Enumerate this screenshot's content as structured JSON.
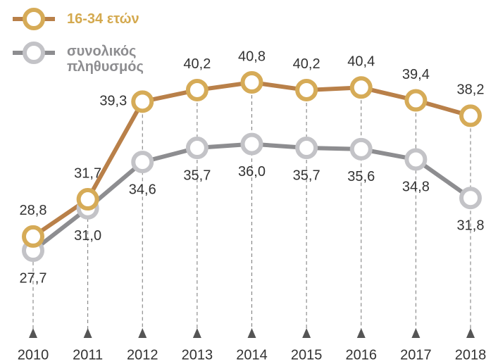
{
  "chart_data": {
    "type": "line",
    "categories": [
      "2010",
      "2011",
      "2012",
      "2013",
      "2014",
      "2015",
      "2016",
      "2017",
      "2018"
    ],
    "series": [
      {
        "name": "16-34 ετών",
        "color": "#b98049",
        "marker_color": "#d6ab57",
        "text_color": "#d4a94e",
        "values": [
          28.8,
          31.7,
          39.3,
          40.2,
          40.8,
          40.2,
          40.4,
          39.4,
          38.2
        ],
        "value_labels": [
          "28,8",
          "31,7",
          "39,3",
          "40,2",
          "40,8",
          "40,2",
          "40,4",
          "39,4",
          "38,2"
        ]
      },
      {
        "name": "συνολικός πληθυσμός",
        "color": "#8d8d90",
        "marker_color": "#c3c3c7",
        "text_color": "#8d8d90",
        "values": [
          27.7,
          31.0,
          34.6,
          35.7,
          36.0,
          35.7,
          35.6,
          34.8,
          31.8
        ],
        "value_labels": [
          "27,7",
          "31,0",
          "34,6",
          "35,7",
          "36,0",
          "35,7",
          "35,6",
          "34,8",
          "31,8"
        ]
      }
    ]
  }
}
